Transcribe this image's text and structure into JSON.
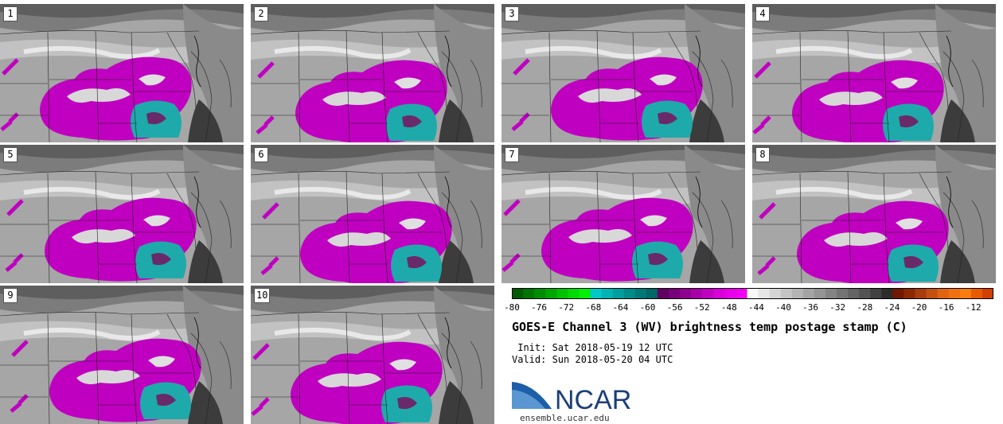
{
  "panels": [
    {
      "label": "1"
    },
    {
      "label": "2"
    },
    {
      "label": "3"
    },
    {
      "label": "4"
    },
    {
      "label": "5"
    },
    {
      "label": "6"
    },
    {
      "label": "7"
    },
    {
      "label": "8"
    },
    {
      "label": "9"
    },
    {
      "label": "10"
    }
  ],
  "colorbar": {
    "ticks": [
      "-80",
      "-76",
      "-72",
      "-68",
      "-64",
      "-60",
      "-56",
      "-52",
      "-48",
      "-44",
      "-40",
      "-36",
      "-32",
      "-28",
      "-24",
      "-20",
      "-16",
      "-12"
    ],
    "colors": [
      "#005a00",
      "#007300",
      "#008c00",
      "#00a600",
      "#00c000",
      "#00da00",
      "#00f000",
      "#00c8c8",
      "#00b4b4",
      "#009e9e",
      "#008a8a",
      "#007878",
      "#006666",
      "#600060",
      "#780078",
      "#900090",
      "#a800a8",
      "#c000c0",
      "#d800d8",
      "#e800e8",
      "#f000f0",
      "#f8f8f8",
      "#e6e6e6",
      "#d4d4d4",
      "#c4c4c4",
      "#b4b4b4",
      "#a4a4a4",
      "#949494",
      "#848484",
      "#747474",
      "#646464",
      "#545454",
      "#404040",
      "#2c2c2c",
      "#701800",
      "#8c2800",
      "#a83c10",
      "#c45010",
      "#e06410",
      "#f07010",
      "#f87c10",
      "#e85a00",
      "#d04000"
    ]
  },
  "title": "GOES-E Channel 3 (WV) brightness temp postage stamp (C)",
  "init": " Init: Sat 2018-05-19 12 UTC",
  "valid": "Valid: Sun 2018-05-20 04 UTC",
  "logo": {
    "text": "NCAR"
  },
  "url": "ensemble.ucar.edu"
}
